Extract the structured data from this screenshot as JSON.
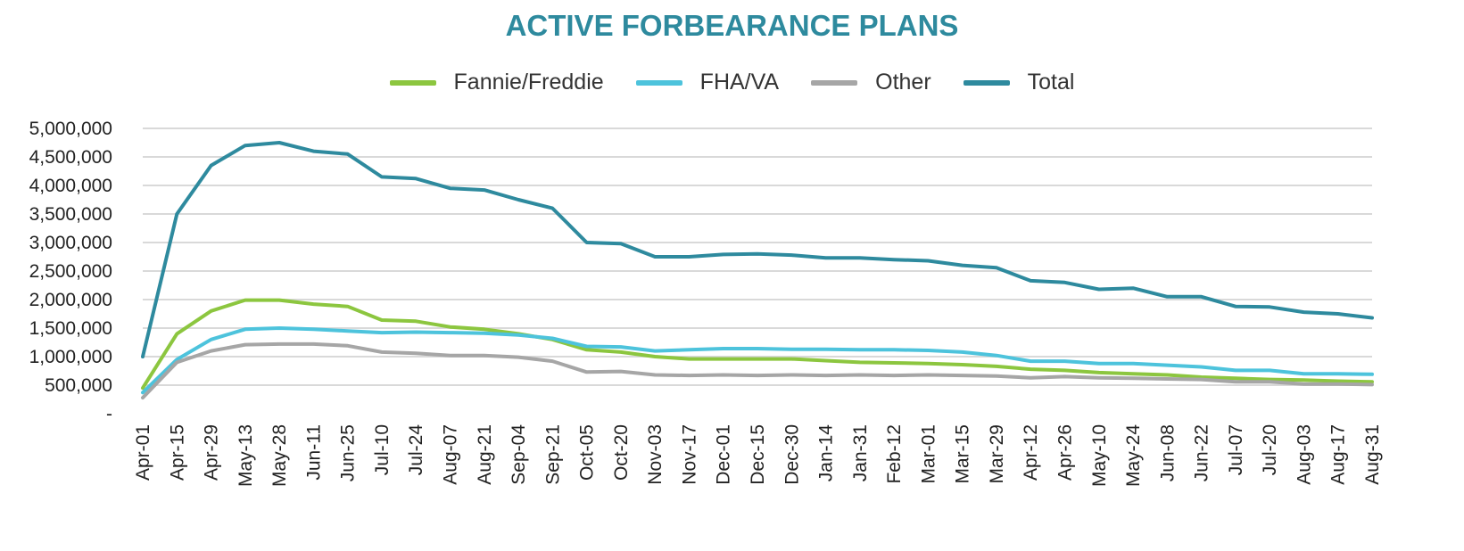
{
  "chart_data": {
    "type": "line",
    "title": "ACTIVE FORBEARANCE PLANS",
    "xlabel": "",
    "ylabel": "",
    "ylim": [
      0,
      5000000
    ],
    "y_ticks": [
      0,
      500000,
      1000000,
      1500000,
      2000000,
      2500000,
      3000000,
      3500000,
      4000000,
      4500000,
      5000000
    ],
    "y_tick_labels": [
      "-",
      "500,000",
      "1,000,000",
      "1,500,000",
      "2,000,000",
      "2,500,000",
      "3,000,000",
      "3,500,000",
      "4,000,000",
      "4,500,000",
      "5,000,000"
    ],
    "grid": true,
    "legend_position": "top-center",
    "categories": [
      "Apr-01",
      "Apr-15",
      "Apr-29",
      "May-13",
      "May-28",
      "Jun-11",
      "Jun-25",
      "Jul-10",
      "Jul-24",
      "Aug-07",
      "Aug-21",
      "Sep-04",
      "Sep-21",
      "Oct-05",
      "Oct-20",
      "Nov-03",
      "Nov-17",
      "Dec-01",
      "Dec-15",
      "Dec-30",
      "Jan-14",
      "Jan-31",
      "Feb-12",
      "Mar-01",
      "Mar-15",
      "Mar-29",
      "Apr-12",
      "Apr-26",
      "May-10",
      "May-24",
      "Jun-08",
      "Jun-22",
      "Jul-07",
      "Jul-20",
      "Aug-03",
      "Aug-17",
      "Aug-31"
    ],
    "series": [
      {
        "name": "Fannie/Freddie",
        "color": "#8cc63f",
        "values": [
          450000,
          1400000,
          1800000,
          1990000,
          1990000,
          1920000,
          1880000,
          1640000,
          1620000,
          1520000,
          1480000,
          1400000,
          1300000,
          1120000,
          1080000,
          1000000,
          960000,
          960000,
          960000,
          960000,
          930000,
          900000,
          890000,
          880000,
          860000,
          830000,
          780000,
          760000,
          720000,
          700000,
          680000,
          640000,
          620000,
          600000,
          590000,
          570000,
          560000
        ]
      },
      {
        "name": "FHA/VA",
        "color": "#4dc3dc",
        "values": [
          370000,
          950000,
          1300000,
          1480000,
          1500000,
          1480000,
          1450000,
          1420000,
          1430000,
          1420000,
          1410000,
          1380000,
          1320000,
          1180000,
          1170000,
          1100000,
          1120000,
          1140000,
          1140000,
          1130000,
          1130000,
          1120000,
          1120000,
          1110000,
          1080000,
          1020000,
          920000,
          920000,
          880000,
          880000,
          850000,
          820000,
          760000,
          760000,
          700000,
          700000,
          690000
        ]
      },
      {
        "name": "Other",
        "color": "#a6a6a6",
        "values": [
          280000,
          900000,
          1100000,
          1210000,
          1220000,
          1220000,
          1190000,
          1080000,
          1060000,
          1020000,
          1020000,
          990000,
          920000,
          730000,
          740000,
          680000,
          670000,
          680000,
          670000,
          680000,
          670000,
          680000,
          670000,
          680000,
          670000,
          660000,
          630000,
          650000,
          630000,
          620000,
          610000,
          600000,
          560000,
          560000,
          520000,
          520000,
          510000
        ]
      },
      {
        "name": "Total",
        "color": "#2e8a9e",
        "values": [
          1000000,
          3500000,
          4350000,
          4700000,
          4750000,
          4600000,
          4550000,
          4150000,
          4120000,
          3950000,
          3920000,
          3750000,
          3600000,
          3000000,
          2980000,
          2750000,
          2750000,
          2790000,
          2800000,
          2780000,
          2730000,
          2730000,
          2700000,
          2680000,
          2600000,
          2560000,
          2330000,
          2300000,
          2180000,
          2200000,
          2050000,
          2050000,
          1880000,
          1870000,
          1780000,
          1750000,
          1680000
        ]
      }
    ]
  }
}
